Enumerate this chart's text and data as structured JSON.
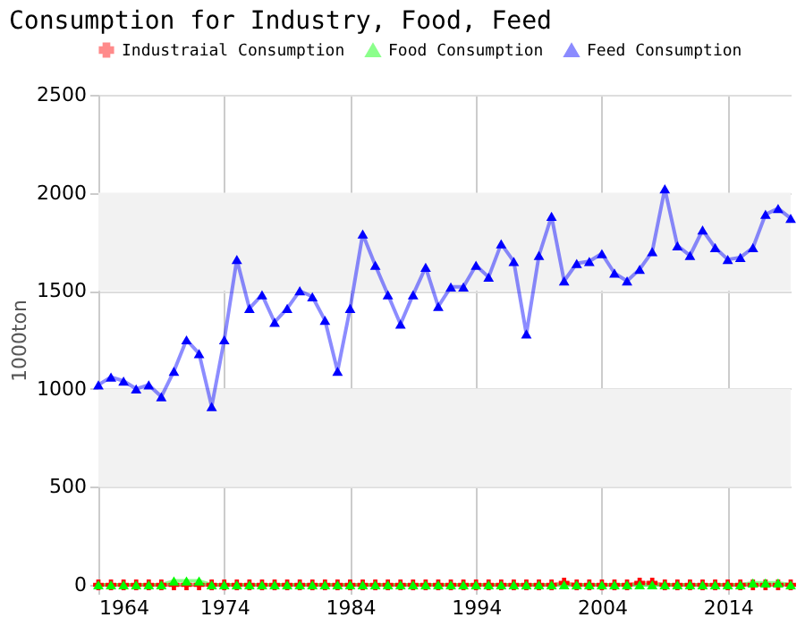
{
  "chart_data": {
    "type": "line",
    "title": "Consumption for Industry, Food, Feed",
    "ylabel": "1000ton",
    "x": [
      1964,
      1965,
      1966,
      1967,
      1968,
      1969,
      1970,
      1971,
      1972,
      1973,
      1974,
      1975,
      1976,
      1977,
      1978,
      1979,
      1980,
      1981,
      1982,
      1983,
      1984,
      1985,
      1986,
      1987,
      1988,
      1989,
      1990,
      1991,
      1992,
      1993,
      1994,
      1995,
      1996,
      1997,
      1998,
      1999,
      2000,
      2001,
      2002,
      2003,
      2004,
      2005,
      2006,
      2007,
      2008,
      2009,
      2010,
      2011,
      2012,
      2013,
      2014,
      2015,
      2016,
      2017,
      2018,
      2019
    ],
    "xlim": [
      1964,
      2019
    ],
    "xticks": [
      1964,
      1974,
      1984,
      1994,
      2004,
      2014
    ],
    "ylim": [
      0,
      2500
    ],
    "yticks": [
      0,
      500,
      1000,
      1500,
      2000,
      2500
    ],
    "grid": true,
    "legend": "top",
    "bands": [
      {
        "axis": "y",
        "from": 500,
        "to": 1000,
        "color": "#f2f2f2"
      },
      {
        "axis": "y",
        "from": 1500,
        "to": 2000,
        "color": "#f2f2f2"
      }
    ],
    "series": [
      {
        "name": "Industraial Consumption",
        "color": "#ff0000",
        "marker": "cross",
        "values": [
          0,
          0,
          0,
          0,
          0,
          0,
          0,
          0,
          0,
          0,
          0,
          0,
          0,
          0,
          0,
          0,
          0,
          0,
          0,
          0,
          0,
          0,
          0,
          0,
          0,
          0,
          0,
          0,
          0,
          0,
          0,
          0,
          0,
          0,
          0,
          0,
          0,
          10,
          0,
          0,
          0,
          0,
          0,
          10,
          10,
          0,
          0,
          0,
          0,
          0,
          0,
          0,
          0,
          0,
          0,
          0
        ]
      },
      {
        "name": "Food Consumption",
        "color": "#00ff00",
        "marker": "triangle",
        "values": [
          0,
          0,
          0,
          0,
          0,
          0,
          20,
          20,
          20,
          0,
          0,
          0,
          0,
          0,
          0,
          0,
          0,
          0,
          0,
          0,
          0,
          0,
          0,
          0,
          0,
          0,
          0,
          0,
          0,
          0,
          0,
          0,
          0,
          0,
          0,
          0,
          0,
          0,
          0,
          0,
          0,
          0,
          0,
          0,
          0,
          0,
          0,
          0,
          0,
          0,
          0,
          0,
          10,
          10,
          10,
          0
        ]
      },
      {
        "name": "Feed Consumption",
        "color": "#0000ff",
        "marker": "triangle",
        "values": [
          1020,
          1060,
          1040,
          1000,
          1020,
          960,
          1090,
          1250,
          1180,
          910,
          1250,
          1660,
          1410,
          1480,
          1340,
          1410,
          1500,
          1470,
          1350,
          1090,
          1410,
          1790,
          1630,
          1480,
          1330,
          1480,
          1620,
          1420,
          1520,
          1520,
          1630,
          1570,
          1740,
          1650,
          1280,
          1680,
          1880,
          1550,
          1640,
          1650,
          1690,
          1590,
          1550,
          1610,
          1700,
          2020,
          1730,
          1680,
          1810,
          1720,
          1660,
          1670,
          1720,
          1890,
          1920,
          1870
        ]
      }
    ]
  }
}
